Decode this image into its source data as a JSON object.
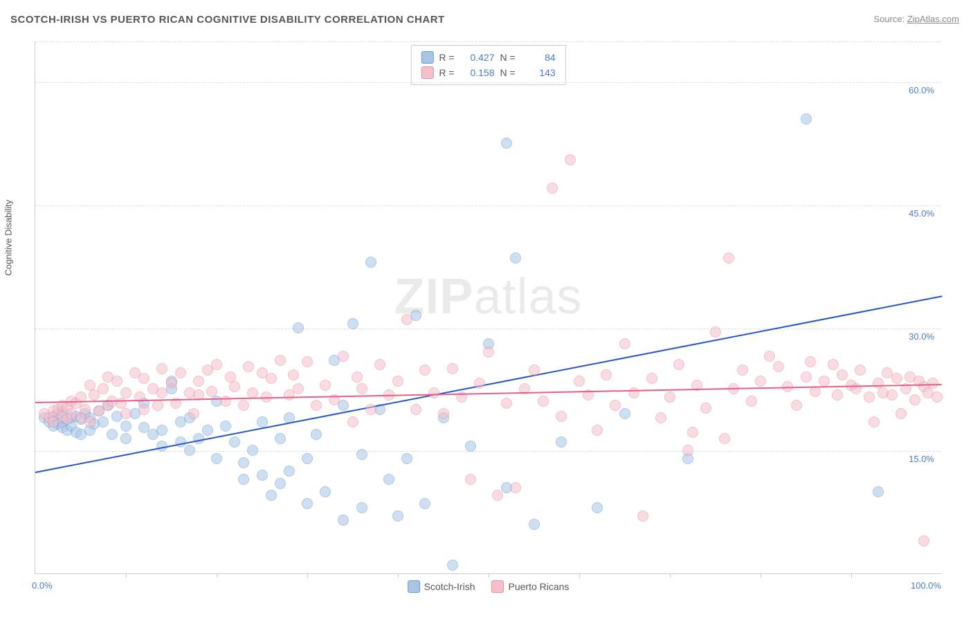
{
  "title": "SCOTCH-IRISH VS PUERTO RICAN COGNITIVE DISABILITY CORRELATION CHART",
  "source_label": "Source:",
  "source_name": "ZipAtlas.com",
  "y_axis_label": "Cognitive Disability",
  "watermark_bold": "ZIP",
  "watermark_light": "atlas",
  "chart": {
    "type": "scatter",
    "background_color": "#ffffff",
    "grid_color": "#dddddd",
    "axis_color": "#cccccc",
    "text_color": "#555555",
    "value_color": "#4a7bc8",
    "xlim": [
      0,
      100
    ],
    "ylim": [
      0,
      65
    ],
    "x_ticks": [
      0,
      100
    ],
    "x_tick_labels": [
      "0.0%",
      "100.0%"
    ],
    "x_minor_ticks": [
      10,
      20,
      30,
      40,
      50,
      60,
      70,
      80,
      90
    ],
    "y_ticks": [
      15,
      30,
      45,
      60
    ],
    "y_tick_labels": [
      "15.0%",
      "30.0%",
      "45.0%",
      "60.0%"
    ],
    "point_radius": 8,
    "point_opacity": 0.55,
    "line_width": 2,
    "title_fontsize": 15,
    "label_fontsize": 13
  },
  "series": [
    {
      "name": "Scotch-Irish",
      "color_fill": "#a8c5e8",
      "color_border": "#6b9bd1",
      "line_color": "#2456c7",
      "R": "0.427",
      "N": "84",
      "trend": {
        "x1": 0,
        "y1": 12.5,
        "x2": 100,
        "y2": 34
      },
      "points": [
        [
          1,
          19
        ],
        [
          1.5,
          18.5
        ],
        [
          2,
          19.2
        ],
        [
          2,
          18
        ],
        [
          2.5,
          19.5
        ],
        [
          2.5,
          18.2
        ],
        [
          3,
          19.8
        ],
        [
          3,
          18.5
        ],
        [
          3,
          17.8
        ],
        [
          3.5,
          18.8
        ],
        [
          3.5,
          17.5
        ],
        [
          4,
          19
        ],
        [
          4,
          18
        ],
        [
          4.5,
          17.2
        ],
        [
          4.5,
          19.2
        ],
        [
          5,
          18.8
        ],
        [
          5,
          17
        ],
        [
          5.5,
          19.5
        ],
        [
          6,
          17.5
        ],
        [
          6,
          19
        ],
        [
          6.5,
          18.2
        ],
        [
          7,
          19.8
        ],
        [
          7.5,
          18.5
        ],
        [
          8,
          20.5
        ],
        [
          8.5,
          17
        ],
        [
          9,
          19.2
        ],
        [
          10,
          18
        ],
        [
          10,
          16.5
        ],
        [
          11,
          19.5
        ],
        [
          12,
          17.8
        ],
        [
          12,
          20.8
        ],
        [
          13,
          17
        ],
        [
          14,
          17.5
        ],
        [
          14,
          15.5
        ],
        [
          15,
          22.5
        ],
        [
          15,
          23.5
        ],
        [
          16,
          18.5
        ],
        [
          16,
          16
        ],
        [
          17,
          19
        ],
        [
          17,
          15
        ],
        [
          18,
          16.5
        ],
        [
          19,
          17.5
        ],
        [
          20,
          21
        ],
        [
          20,
          14
        ],
        [
          21,
          18
        ],
        [
          22,
          16
        ],
        [
          23,
          13.5
        ],
        [
          23,
          11.5
        ],
        [
          24,
          15
        ],
        [
          25,
          12
        ],
        [
          25,
          18.5
        ],
        [
          26,
          9.5
        ],
        [
          27,
          16.5
        ],
        [
          27,
          11
        ],
        [
          28,
          19
        ],
        [
          28,
          12.5
        ],
        [
          29,
          30
        ],
        [
          30,
          8.5
        ],
        [
          30,
          14
        ],
        [
          31,
          17
        ],
        [
          32,
          10
        ],
        [
          33,
          26
        ],
        [
          34,
          6.5
        ],
        [
          34,
          20.5
        ],
        [
          35,
          30.5
        ],
        [
          36,
          14.5
        ],
        [
          36,
          8
        ],
        [
          37,
          38
        ],
        [
          38,
          20
        ],
        [
          39,
          11.5
        ],
        [
          40,
          7
        ],
        [
          41,
          14
        ],
        [
          42,
          31.5
        ],
        [
          43,
          8.5
        ],
        [
          45,
          19
        ],
        [
          46,
          1
        ],
        [
          48,
          15.5
        ],
        [
          50,
          28
        ],
        [
          52,
          10.5
        ],
        [
          52,
          52.5
        ],
        [
          53,
          38.5
        ],
        [
          55,
          6
        ],
        [
          58,
          16
        ],
        [
          62,
          8
        ],
        [
          65,
          19.5
        ],
        [
          72,
          14
        ],
        [
          85,
          55.5
        ],
        [
          93,
          10
        ]
      ]
    },
    {
      "name": "Puerto Ricans",
      "color_fill": "#f5c0cc",
      "color_border": "#e88ba3",
      "line_color": "#e85d8a",
      "R": "0.158",
      "N": "143",
      "trend": {
        "x1": 0,
        "y1": 21,
        "x2": 100,
        "y2": 23.2
      },
      "points": [
        [
          1,
          19.5
        ],
        [
          1.5,
          19
        ],
        [
          2,
          19.8
        ],
        [
          2,
          18.5
        ],
        [
          2.5,
          20
        ],
        [
          3,
          19.2
        ],
        [
          3,
          20.5
        ],
        [
          3.5,
          18.8
        ],
        [
          3.5,
          20.2
        ],
        [
          4,
          19.5
        ],
        [
          4,
          21
        ],
        [
          4.5,
          20.8
        ],
        [
          5,
          19
        ],
        [
          5,
          21.5
        ],
        [
          5.5,
          20
        ],
        [
          6,
          18.5
        ],
        [
          6,
          23
        ],
        [
          6.5,
          21.8
        ],
        [
          7,
          19.8
        ],
        [
          7.5,
          22.5
        ],
        [
          8,
          20.5
        ],
        [
          8,
          24
        ],
        [
          8.5,
          21
        ],
        [
          9,
          23.5
        ],
        [
          9.5,
          20.8
        ],
        [
          10,
          19.5
        ],
        [
          10,
          22
        ],
        [
          11,
          24.5
        ],
        [
          11.5,
          21.5
        ],
        [
          12,
          20
        ],
        [
          12,
          23.8
        ],
        [
          13,
          22.5
        ],
        [
          13.5,
          20.5
        ],
        [
          14,
          25
        ],
        [
          14,
          22
        ],
        [
          15,
          23.2
        ],
        [
          15.5,
          20.8
        ],
        [
          16,
          24.5
        ],
        [
          17,
          22
        ],
        [
          17.5,
          19.5
        ],
        [
          18,
          23.5
        ],
        [
          18,
          21.8
        ],
        [
          19,
          24.8
        ],
        [
          19.5,
          22.2
        ],
        [
          20,
          25.5
        ],
        [
          21,
          21
        ],
        [
          21.5,
          24
        ],
        [
          22,
          22.8
        ],
        [
          23,
          20.5
        ],
        [
          23.5,
          25.2
        ],
        [
          24,
          22
        ],
        [
          25,
          24.5
        ],
        [
          25.5,
          21.5
        ],
        [
          26,
          23.8
        ],
        [
          27,
          26
        ],
        [
          28,
          21.8
        ],
        [
          28.5,
          24.2
        ],
        [
          29,
          22.5
        ],
        [
          30,
          25.8
        ],
        [
          31,
          20.5
        ],
        [
          32,
          23
        ],
        [
          33,
          21.2
        ],
        [
          34,
          26.5
        ],
        [
          35,
          18.5
        ],
        [
          35.5,
          24
        ],
        [
          36,
          22.5
        ],
        [
          37,
          20
        ],
        [
          38,
          25.5
        ],
        [
          39,
          21.8
        ],
        [
          40,
          23.5
        ],
        [
          41,
          31
        ],
        [
          42,
          20
        ],
        [
          43,
          24.8
        ],
        [
          44,
          22
        ],
        [
          45,
          19.5
        ],
        [
          46,
          25
        ],
        [
          47,
          21.5
        ],
        [
          48,
          11.5
        ],
        [
          49,
          23.2
        ],
        [
          50,
          27
        ],
        [
          51,
          9.5
        ],
        [
          52,
          20.8
        ],
        [
          53,
          10.5
        ],
        [
          54,
          22.5
        ],
        [
          55,
          24.8
        ],
        [
          56,
          21
        ],
        [
          57,
          47
        ],
        [
          58,
          19.2
        ],
        [
          59,
          50.5
        ],
        [
          60,
          23.5
        ],
        [
          61,
          21.8
        ],
        [
          62,
          17.5
        ],
        [
          63,
          24.2
        ],
        [
          64,
          20.5
        ],
        [
          65,
          28
        ],
        [
          66,
          22
        ],
        [
          67,
          7
        ],
        [
          68,
          23.8
        ],
        [
          69,
          19
        ],
        [
          70,
          21.5
        ],
        [
          71,
          25.5
        ],
        [
          72,
          15
        ],
        [
          72.5,
          17.2
        ],
        [
          73,
          23
        ],
        [
          74,
          20.2
        ],
        [
          75,
          29.5
        ],
        [
          76,
          16.5
        ],
        [
          76.5,
          38.5
        ],
        [
          77,
          22.5
        ],
        [
          78,
          24.8
        ],
        [
          79,
          21
        ],
        [
          80,
          23.5
        ],
        [
          81,
          26.5
        ],
        [
          82,
          25.2
        ],
        [
          83,
          22.8
        ],
        [
          84,
          20.5
        ],
        [
          85,
          24
        ],
        [
          85.5,
          25.8
        ],
        [
          86,
          22.2
        ],
        [
          87,
          23.5
        ],
        [
          88,
          25.5
        ],
        [
          88.5,
          21.8
        ],
        [
          89,
          24.2
        ],
        [
          90,
          23
        ],
        [
          90.5,
          22.5
        ],
        [
          91,
          24.8
        ],
        [
          92,
          21.5
        ],
        [
          92.5,
          18.5
        ],
        [
          93,
          23.2
        ],
        [
          93.5,
          22
        ],
        [
          94,
          24.5
        ],
        [
          94.5,
          21.8
        ],
        [
          95,
          23.8
        ],
        [
          95.5,
          19.5
        ],
        [
          96,
          22.5
        ],
        [
          96.5,
          24
        ],
        [
          97,
          21.2
        ],
        [
          97.5,
          23.5
        ],
        [
          98,
          22.8
        ],
        [
          98,
          4
        ],
        [
          98.5,
          22
        ],
        [
          99,
          23.2
        ],
        [
          99.5,
          21.5
        ]
      ]
    }
  ],
  "legend_bottom": [
    "Scotch-Irish",
    "Puerto Ricans"
  ]
}
